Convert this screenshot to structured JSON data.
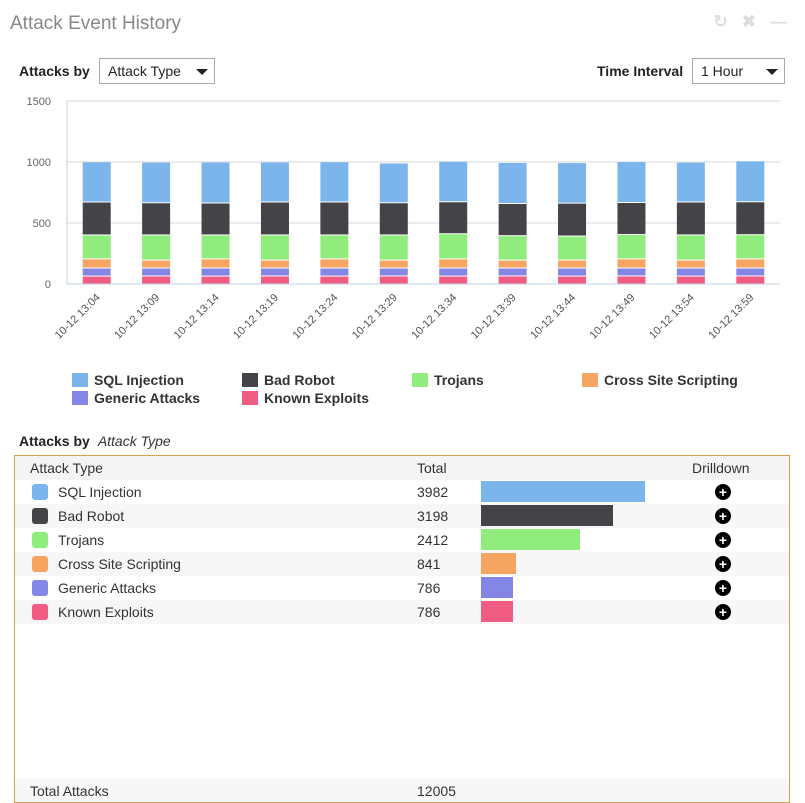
{
  "header": {
    "title": "Attack Event History",
    "icons": [
      "refresh-icon",
      "close-icon",
      "minimize-icon"
    ]
  },
  "controls": {
    "attacks_by_label": "Attacks by",
    "attacks_by_value": "Attack Type",
    "time_interval_label": "Time Interval",
    "time_interval_value": "1 Hour"
  },
  "chart_data": {
    "type": "bar",
    "stacked": true,
    "grid": true,
    "legend": "bottom",
    "ylim": [
      0,
      1500
    ],
    "yticks": [
      "0",
      "500",
      "1000",
      "1500"
    ],
    "categories": [
      "10-12 13:04",
      "10-12 13:09",
      "10-12 13:14",
      "10-12 13:19",
      "10-12 13:24",
      "10-12 13:29",
      "10-12 13:34",
      "10-12 13:39",
      "10-12 13:44",
      "10-12 13:49",
      "10-12 13:54",
      "10-12 13:59"
    ],
    "series": [
      {
        "name": "Known Exploits",
        "color": "#f05c82",
        "values": [
          65,
          66,
          65,
          66,
          65,
          66,
          65,
          66,
          65,
          66,
          65,
          66
        ]
      },
      {
        "name": "Generic Attacks",
        "color": "#8486e6",
        "values": [
          66,
          65,
          66,
          65,
          66,
          65,
          66,
          65,
          66,
          65,
          66,
          65
        ]
      },
      {
        "name": "Cross Site Scripting",
        "color": "#f6a462",
        "values": [
          75,
          65,
          75,
          65,
          75,
          65,
          75,
          65,
          66,
          75,
          65,
          75
        ]
      },
      {
        "name": "Trojans",
        "color": "#90ed7d",
        "values": [
          196,
          206,
          196,
          206,
          196,
          206,
          206,
          200,
          196,
          200,
          206,
          198
        ]
      },
      {
        "name": "Bad Robot",
        "color": "#434348",
        "values": [
          270,
          264,
          262,
          270,
          270,
          264,
          262,
          264,
          270,
          262,
          270,
          270
        ]
      },
      {
        "name": "SQL Injection",
        "color": "#7cb5ec",
        "values": [
          330,
          333,
          336,
          328,
          330,
          326,
          333,
          336,
          332,
          336,
          326,
          336
        ]
      }
    ]
  },
  "legend": [
    {
      "label": "SQL Injection",
      "color": "#7cb5ec"
    },
    {
      "label": "Bad Robot",
      "color": "#434348"
    },
    {
      "label": "Trojans",
      "color": "#90ed7d"
    },
    {
      "label": "Cross Site Scripting",
      "color": "#f6a462"
    },
    {
      "label": "Generic Attacks",
      "color": "#8486e6"
    },
    {
      "label": "Known Exploits",
      "color": "#f05c82"
    }
  ],
  "table": {
    "subtitle_label": "Attacks by",
    "subtitle_value": "Attack Type",
    "headers": {
      "type": "Attack Type",
      "total": "Total",
      "drilldown": "Drilldown"
    },
    "rows": [
      {
        "type": "SQL Injection",
        "total": "3982",
        "color": "#7cb5ec"
      },
      {
        "type": "Bad Robot",
        "total": "3198",
        "color": "#434348"
      },
      {
        "type": "Trojans",
        "total": "2412",
        "color": "#90ed7d"
      },
      {
        "type": "Cross Site Scripting",
        "total": "841",
        "color": "#f6a462"
      },
      {
        "type": "Generic Attacks",
        "total": "786",
        "color": "#8486e6"
      },
      {
        "type": "Known Exploits",
        "total": "786",
        "color": "#f05c82"
      }
    ],
    "footer": {
      "label": "Total Attacks",
      "value": "12005"
    }
  }
}
